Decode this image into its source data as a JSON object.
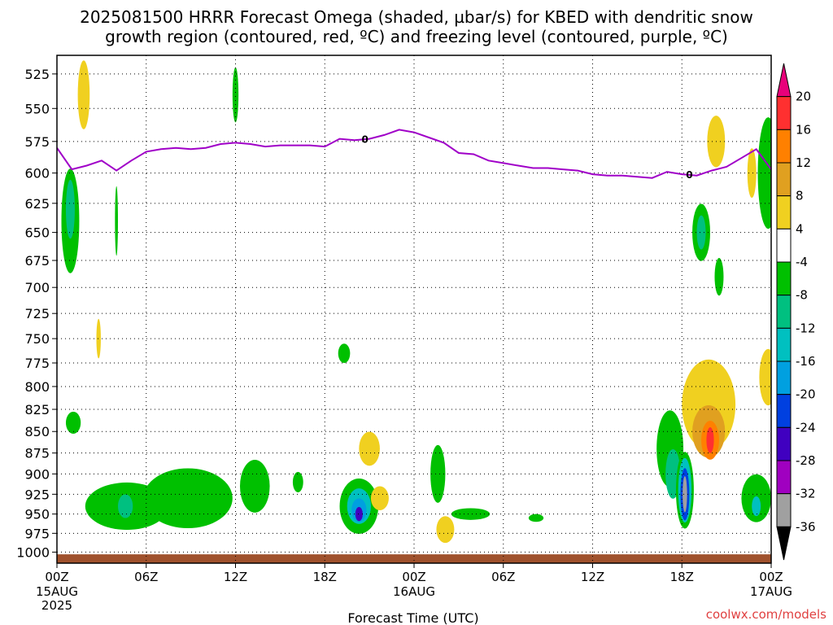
{
  "title_line1": "2025081500 HRRR Forecast Omega (shaded, µbar/s) for KBED with dendritic snow",
  "title_line2": "growth region (contoured, red, ºC) and freezing level (contoured, purple, ºC)",
  "xlabel": "Forecast Time (UTC)",
  "credit": "coolwx.com/models",
  "colors": {
    "freezing_line": "#a000c8",
    "terrain": "#a0522d",
    "grid": "#000000"
  },
  "chart_data": {
    "type": "heatmap",
    "x_ticks": [
      {
        "label": "00Z",
        "sub": "15AUG",
        "sub2": "2025",
        "hour": 0
      },
      {
        "label": "06Z",
        "sub": "",
        "sub2": "",
        "hour": 6
      },
      {
        "label": "12Z",
        "sub": "",
        "sub2": "",
        "hour": 12
      },
      {
        "label": "18Z",
        "sub": "",
        "sub2": "",
        "hour": 18
      },
      {
        "label": "00Z",
        "sub": "16AUG",
        "sub2": "",
        "hour": 24
      },
      {
        "label": "06Z",
        "sub": "",
        "sub2": "",
        "hour": 30
      },
      {
        "label": "12Z",
        "sub": "",
        "sub2": "",
        "hour": 36
      },
      {
        "label": "18Z",
        "sub": "",
        "sub2": "",
        "hour": 42
      },
      {
        "label": "00Z",
        "sub": "17AUG",
        "sub2": "",
        "hour": 48
      }
    ],
    "xlim": [
      0,
      48
    ],
    "y_levels": [
      "525",
      "550",
      "575",
      "600",
      "625",
      "650",
      "675",
      "700",
      "725",
      "750",
      "775",
      "800",
      "825",
      "850",
      "875",
      "900",
      "925",
      "950",
      "975",
      "1000"
    ],
    "ylim": [
      1015,
      512
    ],
    "y_log": true,
    "colorbar": {
      "labels": [
        "20",
        "16",
        "12",
        "8",
        "4",
        "-4",
        "-8",
        "-12",
        "-16",
        "-20",
        "-24",
        "-28",
        "-32",
        "-36"
      ],
      "colors": [
        "#e8007a",
        "#ff3030",
        "#ff8000",
        "#e0a020",
        "#f0d020",
        "#ffffff",
        "#00c000",
        "#00c080",
        "#00c0c0",
        "#00a0e0",
        "#0040e0",
        "#4000c0",
        "#a000c0",
        "#a0a0a0",
        "#000000"
      ]
    },
    "freezing_level": {
      "label": "0",
      "hours": [
        0,
        1,
        2,
        3,
        4,
        5,
        6,
        7,
        8,
        9,
        10,
        11,
        12,
        13,
        14,
        15,
        16,
        17,
        18,
        19,
        20,
        21,
        22,
        23,
        24,
        25,
        26,
        27,
        28,
        29,
        30,
        31,
        32,
        33,
        34,
        35,
        36,
        37,
        38,
        39,
        40,
        41,
        42,
        43,
        44,
        45,
        46,
        47,
        48
      ],
      "hPa": [
        580,
        597,
        594,
        590,
        598,
        590,
        583,
        581,
        580,
        581,
        580,
        577,
        576,
        577,
        579,
        578,
        578,
        578,
        579,
        573,
        574,
        573,
        570,
        566,
        568,
        572,
        576,
        584,
        585,
        590,
        592,
        594,
        596,
        596,
        597,
        598,
        601,
        602,
        602,
        603,
        604,
        599,
        601,
        602,
        598,
        595,
        588,
        581,
        597
      ]
    },
    "omega_regions": [
      {
        "value": -6,
        "hour": 0.9,
        "hPa": 640,
        "dh": 0.6,
        "dp": 90
      },
      {
        "value": -10,
        "hour": 0.9,
        "hPa": 630,
        "dh": 0.3,
        "dp": 50
      },
      {
        "value": 6,
        "hour": 1.8,
        "hPa": 540,
        "dh": 0.4,
        "dp": 50
      },
      {
        "value": -6,
        "hour": 4,
        "hPa": 640,
        "dh": 0.1,
        "dp": 60
      },
      {
        "value": 6,
        "hour": 2.8,
        "hPa": 750,
        "dh": 0.15,
        "dp": 40
      },
      {
        "value": -6,
        "hour": 12,
        "hPa": 540,
        "dh": 0.2,
        "dp": 40
      },
      {
        "value": -6,
        "hour": 1.1,
        "hPa": 840,
        "dh": 0.5,
        "dp": 25
      },
      {
        "value": -6,
        "hour": 4.7,
        "hPa": 940,
        "dh": 2.8,
        "dp": 60
      },
      {
        "value": -6,
        "hour": 8.8,
        "hPa": 930,
        "dh": 3,
        "dp": 75
      },
      {
        "value": -10,
        "hour": 4.6,
        "hPa": 940,
        "dh": 0.5,
        "dp": 30
      },
      {
        "value": -6,
        "hour": 13.3,
        "hPa": 915,
        "dh": 1,
        "dp": 65
      },
      {
        "value": -6,
        "hour": 16.2,
        "hPa": 910,
        "dh": 0.35,
        "dp": 25
      },
      {
        "value": -6,
        "hour": 20.3,
        "hPa": 940,
        "dh": 1.3,
        "dp": 70
      },
      {
        "value": -14,
        "hour": 20.3,
        "hPa": 940,
        "dh": 0.8,
        "dp": 45
      },
      {
        "value": -18,
        "hour": 20.3,
        "hPa": 945,
        "dh": 0.5,
        "dp": 30
      },
      {
        "value": -28,
        "hour": 20.3,
        "hPa": 950,
        "dh": 0.25,
        "dp": 18
      },
      {
        "value": -6,
        "hour": 19.3,
        "hPa": 765,
        "dh": 0.4,
        "dp": 20
      },
      {
        "value": 6,
        "hour": 21,
        "hPa": 870,
        "dh": 0.7,
        "dp": 40
      },
      {
        "value": 6,
        "hour": 21.7,
        "hPa": 930,
        "dh": 0.6,
        "dp": 30
      },
      {
        "value": 6,
        "hour": 26.1,
        "hPa": 970,
        "dh": 0.6,
        "dp": 35
      },
      {
        "value": -6,
        "hour": 25.6,
        "hPa": 900,
        "dh": 0.5,
        "dp": 70
      },
      {
        "value": -6,
        "hour": 27.8,
        "hPa": 950,
        "dh": 1.3,
        "dp": 15
      },
      {
        "value": -6,
        "hour": 32.2,
        "hPa": 955,
        "dh": 0.5,
        "dp": 10
      },
      {
        "value": -6,
        "hour": 43.3,
        "hPa": 650,
        "dh": 0.6,
        "dp": 50
      },
      {
        "value": -10,
        "hour": 43.3,
        "hPa": 650,
        "dh": 0.3,
        "dp": 30
      },
      {
        "value": -6,
        "hour": 44.5,
        "hPa": 690,
        "dh": 0.3,
        "dp": 35
      },
      {
        "value": 6,
        "hour": 44.3,
        "hPa": 575,
        "dh": 0.6,
        "dp": 40
      },
      {
        "value": 6,
        "hour": 46.7,
        "hPa": 600,
        "dh": 0.3,
        "dp": 40
      },
      {
        "value": -6,
        "hour": 47.8,
        "hPa": 600,
        "dh": 0.7,
        "dp": 90
      },
      {
        "value": -6,
        "hour": 41.2,
        "hPa": 870,
        "dh": 0.9,
        "dp": 90
      },
      {
        "value": -10,
        "hour": 41.4,
        "hPa": 900,
        "dh": 0.5,
        "dp": 60
      },
      {
        "value": 6,
        "hour": 43.8,
        "hPa": 820,
        "dh": 1.8,
        "dp": 100
      },
      {
        "value": 10,
        "hour": 43.8,
        "hPa": 850,
        "dh": 1.1,
        "dp": 60
      },
      {
        "value": 14,
        "hour": 43.9,
        "hPa": 860,
        "dh": 0.6,
        "dp": 45
      },
      {
        "value": 18,
        "hour": 43.9,
        "hPa": 860,
        "dh": 0.25,
        "dp": 30
      },
      {
        "value": -6,
        "hour": 42.2,
        "hPa": 920,
        "dh": 0.6,
        "dp": 95
      },
      {
        "value": -14,
        "hour": 42.2,
        "hPa": 920,
        "dh": 0.45,
        "dp": 80
      },
      {
        "value": -22,
        "hour": 42.2,
        "hPa": 925,
        "dh": 0.3,
        "dp": 65
      },
      {
        "value": -34,
        "hour": 42.2,
        "hPa": 925,
        "dh": 0.15,
        "dp": 45
      },
      {
        "value": -6,
        "hour": 47,
        "hPa": 930,
        "dh": 1,
        "dp": 60
      },
      {
        "value": -14,
        "hour": 47,
        "hPa": 940,
        "dh": 0.3,
        "dp": 25
      },
      {
        "value": 6,
        "hour": 47.8,
        "hPa": 790,
        "dh": 0.6,
        "dp": 60
      }
    ]
  }
}
